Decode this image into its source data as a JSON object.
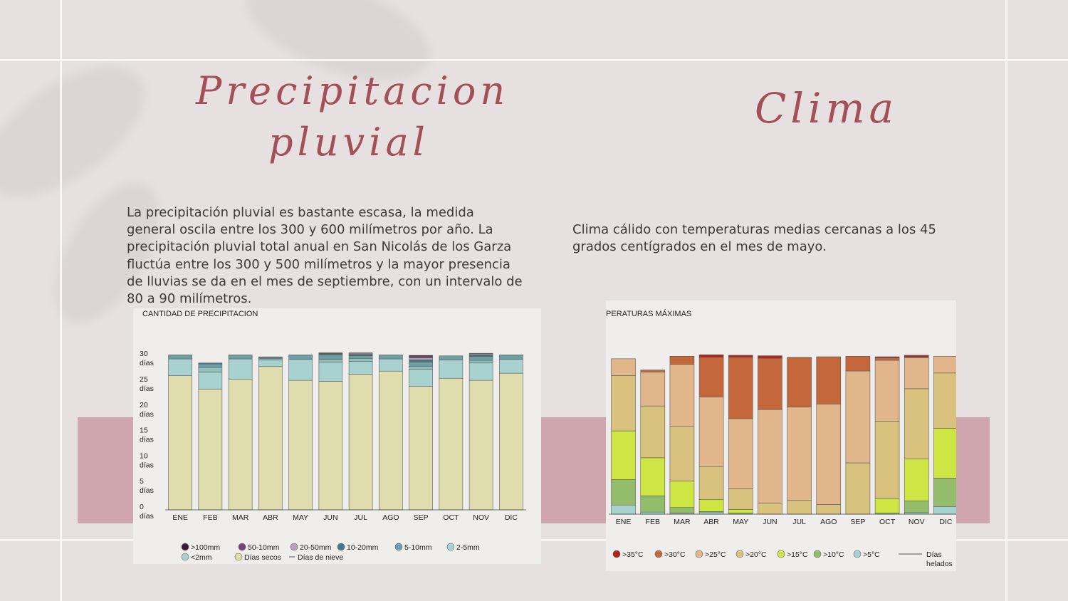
{
  "precip": {
    "title": "Precipitacion pluvial",
    "body": "La precipitación pluvial es bastante escasa, la medida general oscila entre los 300 y 600 milímetros por año. La precipitación pluvial total anual en San Nicolás de los Garza fluctúa entre los 300 y 500 milímetros y la mayor presencia de lluvias se da en el mes de septiembre, con un intervalo de 80 a 90 milímetros."
  },
  "clima": {
    "title": "Clima",
    "body": "Clima cálido con temperaturas medias cercanas a los 45 grados centígrados en el mes de mayo."
  },
  "colors": {
    "background": "#e6e1e0",
    "accent_band": "#cfa6ad",
    "title_color": "#a4505a"
  },
  "chart_data": [
    {
      "type": "bar",
      "stacked": true,
      "title": "CANTIDAD DE PRECIPITACION",
      "categories": [
        "ENE",
        "FEB",
        "MAR",
        "ABR",
        "MAY",
        "JUN",
        "JUL",
        "AGO",
        "SEP",
        "OCT",
        "NOV",
        "DIC"
      ],
      "ylim": [
        0,
        31
      ],
      "yticks": [
        {
          "value": 0,
          "line1": "0",
          "line2": "días"
        },
        {
          "value": 5,
          "line1": "5",
          "line2": "días"
        },
        {
          "value": 10,
          "line1": "10",
          "line2": "días"
        },
        {
          "value": 15,
          "line1": "15",
          "line2": "días"
        },
        {
          "value": 20,
          "line1": "20",
          "line2": "días"
        },
        {
          "value": 25,
          "line1": "25",
          "line2": "días"
        },
        {
          "value": 30,
          "line1": "30",
          "line2": "días"
        }
      ],
      "series": [
        {
          "name": "Días secos",
          "color": "#dfdcad",
          "values": [
            26.3,
            23.7,
            25.6,
            28.1,
            25.4,
            25.2,
            26.6,
            27.2,
            24.2,
            25.8,
            25.4,
            26.8
          ]
        },
        {
          "name": "<2mm",
          "color": "#a8d2cf",
          "values": [
            3.3,
            3.3,
            4.0,
            1.3,
            4.1,
            3.8,
            2.5,
            2.4,
            3.4,
            3.6,
            3.4,
            2.7
          ]
        },
        {
          "name": "2-5mm",
          "color": "#8fc1bf",
          "values": [
            0.0,
            0.9,
            0.0,
            0.3,
            0.0,
            0.5,
            0.6,
            0.0,
            0.5,
            0.0,
            0.5,
            0.0
          ]
        },
        {
          "name": "5-10mm",
          "color": "#6f9fa2",
          "values": [
            0.8,
            0.7,
            0.8,
            0.2,
            0.9,
            0.9,
            0.5,
            0.8,
            0.9,
            0.8,
            0.8,
            0.9
          ]
        },
        {
          "name": "10-20mm",
          "color": "#3f7a7e",
          "values": [
            0.0,
            0.2,
            0.0,
            0.1,
            0.0,
            0.2,
            0.3,
            0.0,
            0.4,
            0.0,
            0.3,
            0.0
          ]
        },
        {
          "name": "20-50mm",
          "color": "#b79fc2",
          "values": [
            0.0,
            0.0,
            0.0,
            0.0,
            0.0,
            0.1,
            0.2,
            0.0,
            0.4,
            0.0,
            0.2,
            0.0
          ]
        },
        {
          "name": "50-10mm",
          "color": "#7d3f7c",
          "values": [
            0.0,
            0.0,
            0.0,
            0.0,
            0.0,
            0.1,
            0.1,
            0.0,
            0.3,
            0.0,
            0.1,
            0.0
          ]
        },
        {
          "name": ">100mm",
          "color": "#3b1a36",
          "values": [
            0.0,
            0.0,
            0.0,
            0.0,
            0.0,
            0.0,
            0.0,
            0.0,
            0.2,
            0.0,
            0.0,
            0.0
          ]
        }
      ],
      "legend": [
        {
          "label": ">100mm",
          "color": "#3b1a36"
        },
        {
          "label": "50-10mm",
          "color": "#7d3f7c"
        },
        {
          "label": "20-50mm",
          "color": "#b79fc2"
        },
        {
          "label": "10-20mm",
          "color": "#3f7a7e"
        },
        {
          "label": "5-10mm",
          "color": "#6f9fa2"
        },
        {
          "label": "2-5mm",
          "color": "#a8d2cf"
        },
        {
          "label": "<2mm",
          "color": "#a8d2cf"
        },
        {
          "label": "Días secos",
          "color": "#dfdcad"
        },
        {
          "label": "Días de nieve",
          "color": "#555555",
          "line": true
        }
      ]
    },
    {
      "type": "bar",
      "stacked": true,
      "title": "IPERATURAS MÁXIMAS",
      "categories": [
        "ENE",
        "FEB",
        "MAR",
        "ABR",
        "MAY",
        "JUN",
        "JUL",
        "AGO",
        "SEP",
        "OCT",
        "NOV",
        "DIC"
      ],
      "ylim": [
        0,
        31
      ],
      "series": [
        {
          "name": ">5°C",
          "color": "#a8d2cf",
          "values": [
            1.8,
            0.4,
            0.2,
            0.4,
            0.0,
            0.0,
            0.0,
            0.0,
            0.0,
            0.0,
            0.3,
            1.5
          ]
        },
        {
          "name": ">10°C",
          "color": "#93bd6b",
          "values": [
            5.0,
            3.2,
            1.1,
            0.1,
            0.2,
            0.0,
            0.0,
            0.0,
            0.0,
            0.2,
            2.3,
            5.6
          ]
        },
        {
          "name": ">15°C",
          "color": "#cde644",
          "values": [
            9.6,
            7.5,
            5.2,
            2.4,
            0.7,
            0.0,
            0.0,
            0.0,
            0.0,
            2.9,
            8.3,
            9.8
          ]
        },
        {
          "name": ">20°C",
          "color": "#d8c27d",
          "values": [
            10.9,
            10.2,
            10.8,
            6.4,
            4.1,
            2.2,
            2.7,
            1.9,
            10.1,
            15.2,
            13.8,
            10.9
          ]
        },
        {
          "name": ">25°C",
          "color": "#e0b68a",
          "values": [
            3.3,
            6.7,
            12.2,
            13.8,
            13.8,
            18.4,
            18.4,
            19.8,
            18.1,
            12.0,
            6.1,
            3.3
          ]
        },
        {
          "name": ">30°C",
          "color": "#c4673a",
          "values": [
            0.0,
            0.4,
            1.6,
            7.8,
            12.1,
            10.1,
            9.8,
            9.3,
            2.9,
            0.5,
            0.2,
            0.0
          ]
        },
        {
          "name": ">35°C",
          "color": "#b3231a",
          "values": [
            0.0,
            0.0,
            0.0,
            0.5,
            0.4,
            0.5,
            0.0,
            0.0,
            0.0,
            0.2,
            0.3,
            0.0
          ]
        }
      ],
      "legend": [
        {
          "label": ">35°C",
          "color": "#b3231a"
        },
        {
          "label": ">30°C",
          "color": "#c4673a"
        },
        {
          "label": ">25°C",
          "color": "#e0b68a"
        },
        {
          "label": ">20°C",
          "color": "#d8c27d"
        },
        {
          "label": ">15°C",
          "color": "#cde644"
        },
        {
          "label": ">10°C",
          "color": "#93bd6b"
        },
        {
          "label": ">5°C",
          "color": "#a8d2cf"
        }
      ],
      "frost_legend": {
        "line1": "Días",
        "line2": "helados"
      }
    }
  ]
}
